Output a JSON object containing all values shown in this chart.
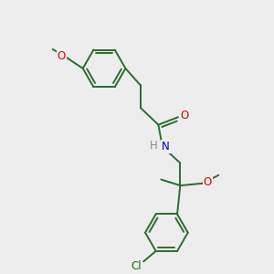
{
  "background_color": "#EDEDED",
  "bond_color": "#2d6b30",
  "bond_width": 1.4,
  "atom_colors": {
    "O": "#dd0000",
    "N": "#0000cc",
    "Cl": "#007700",
    "H": "#888888",
    "C": "#2d6b30"
  },
  "font_size_atoms": 8.5
}
